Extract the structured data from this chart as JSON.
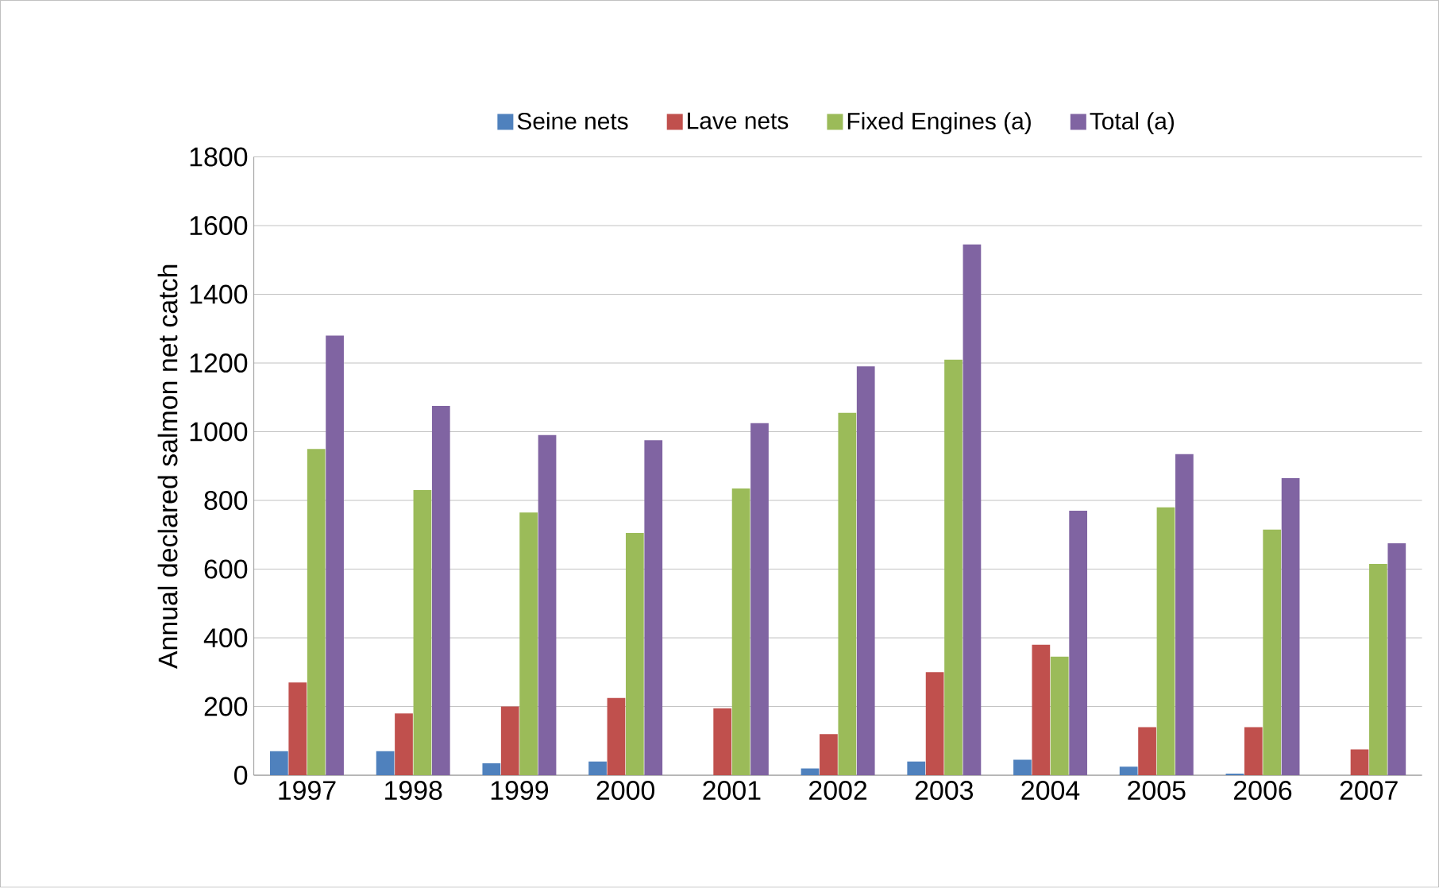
{
  "chart_data": {
    "type": "bar",
    "ylabel": "Annual declared salmon net catch",
    "categories": [
      "1997",
      "1998",
      "1999",
      "2000",
      "2001",
      "2002",
      "2003",
      "2004",
      "2005",
      "2006",
      "2007"
    ],
    "series": [
      {
        "name": "Seine nets",
        "color": "#4f81bd",
        "values": [
          70,
          70,
          35,
          40,
          null,
          20,
          40,
          45,
          25,
          5,
          null
        ]
      },
      {
        "name": "Lave nets",
        "color": "#c0504d",
        "values": [
          270,
          180,
          200,
          225,
          195,
          120,
          300,
          380,
          140,
          140,
          75
        ]
      },
      {
        "name": "Fixed Engines (a)",
        "color": "#9bbb59",
        "values": [
          950,
          830,
          765,
          705,
          835,
          1055,
          1210,
          345,
          780,
          715,
          615
        ]
      },
      {
        "name": "Total (a)",
        "color": "#8064a2",
        "values": [
          1280,
          1075,
          990,
          975,
          1025,
          1190,
          1545,
          770,
          935,
          865,
          675
        ]
      }
    ],
    "ylim": [
      0,
      1800
    ],
    "yticks": [
      0,
      200,
      400,
      600,
      800,
      1000,
      1200,
      1400,
      1600,
      1800
    ],
    "grid": "y",
    "legend": "top"
  }
}
